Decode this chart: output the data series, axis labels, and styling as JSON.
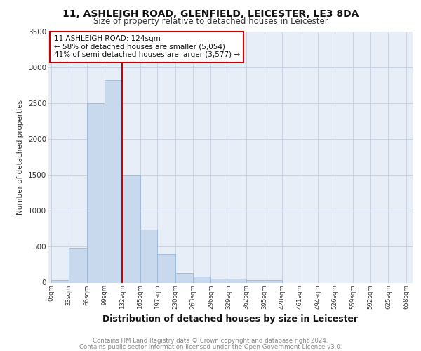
{
  "title1": "11, ASHLEIGH ROAD, GLENFIELD, LEICESTER, LE3 8DA",
  "title2": "Size of property relative to detached houses in Leicester",
  "xlabel": "Distribution of detached houses by size in Leicester",
  "ylabel": "Number of detached properties",
  "bar_left_edges": [
    0,
    33,
    66,
    99,
    132,
    165,
    197,
    230,
    263,
    296,
    329,
    362,
    395,
    428,
    461,
    494,
    526,
    559,
    592,
    625
  ],
  "bar_widths": [
    33,
    33,
    33,
    33,
    33,
    32,
    33,
    33,
    33,
    33,
    33,
    33,
    33,
    33,
    33,
    32,
    33,
    33,
    33,
    33
  ],
  "bar_heights": [
    30,
    480,
    2500,
    2820,
    1500,
    740,
    400,
    130,
    80,
    50,
    50,
    35,
    30,
    0,
    0,
    0,
    0,
    0,
    0,
    0
  ],
  "bar_color": "#c8d8ed",
  "bar_edge_color": "#9ab8d8",
  "vline_x": 132,
  "vline_color": "#cc0000",
  "annotation_text": "11 ASHLEIGH ROAD: 124sqm\n← 58% of detached houses are smaller (5,054)\n41% of semi-detached houses are larger (3,577) →",
  "annotation_box_color": "#cc0000",
  "xtick_labels": [
    "0sqm",
    "33sqm",
    "66sqm",
    "99sqm",
    "132sqm",
    "165sqm",
    "197sqm",
    "230sqm",
    "263sqm",
    "296sqm",
    "329sqm",
    "362sqm",
    "395sqm",
    "428sqm",
    "461sqm",
    "494sqm",
    "526sqm",
    "559sqm",
    "592sqm",
    "625sqm",
    "658sqm"
  ],
  "xtick_positions": [
    0,
    33,
    66,
    99,
    132,
    165,
    197,
    230,
    263,
    296,
    329,
    362,
    395,
    428,
    461,
    494,
    526,
    559,
    592,
    625,
    658
  ],
  "ylim": [
    0,
    3500
  ],
  "xlim": [
    -5,
    670
  ],
  "yticks": [
    0,
    500,
    1000,
    1500,
    2000,
    2500,
    3000,
    3500
  ],
  "footnote1": "Contains HM Land Registry data © Crown copyright and database right 2024.",
  "footnote2": "Contains public sector information licensed under the Open Government Licence v3.0.",
  "bg_color": "#ffffff",
  "plot_bg_color": "#e8eef8",
  "grid_color": "#c8d4e4"
}
